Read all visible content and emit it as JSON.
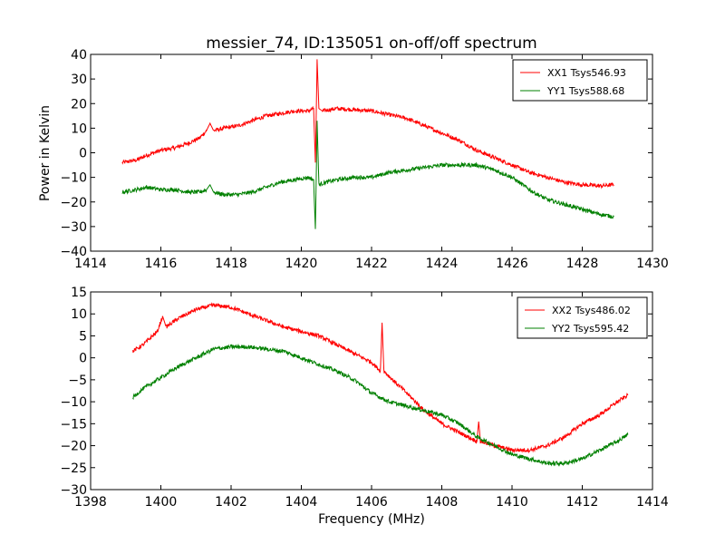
{
  "chart_data": [
    {
      "type": "line",
      "title": "messier_74, ID:135051 on-off/off spectrum",
      "xlabel": "",
      "ylabel": "Power in Kelvin",
      "xlim": [
        1414,
        1430
      ],
      "ylim": [
        -40,
        40
      ],
      "xticks": [
        "1414",
        "1416",
        "1418",
        "1420",
        "1422",
        "1424",
        "1426",
        "1428",
        "1430"
      ],
      "yticks": [
        "40",
        "30",
        "20",
        "10",
        "0",
        "−10",
        "−20",
        "−30",
        "−40"
      ],
      "legend_placement": "top-right",
      "grid": false,
      "series": [
        {
          "name": "XX1 Tsys546.93",
          "color": "#ff0000",
          "points": [
            [
              1414.9,
              -4
            ],
            [
              1415.3,
              -3
            ],
            [
              1415.6,
              -1
            ],
            [
              1416,
              1
            ],
            [
              1416.4,
              2
            ],
            [
              1416.8,
              4
            ],
            [
              1417.1,
              6
            ],
            [
              1417.3,
              9
            ],
            [
              1417.4,
              12
            ],
            [
              1417.5,
              9
            ],
            [
              1417.8,
              10
            ],
            [
              1418.2,
              11
            ],
            [
              1418.6,
              13
            ],
            [
              1419,
              15
            ],
            [
              1419.4,
              16
            ],
            [
              1419.8,
              17
            ],
            [
              1420.2,
              17
            ],
            [
              1420.35,
              18
            ],
            [
              1420.4,
              -4
            ],
            [
              1420.45,
              38
            ],
            [
              1420.5,
              18
            ],
            [
              1420.6,
              17
            ],
            [
              1421,
              18
            ],
            [
              1421.5,
              17.5
            ],
            [
              1422,
              17
            ],
            [
              1422.5,
              15.5
            ],
            [
              1423,
              14
            ],
            [
              1423.5,
              11
            ],
            [
              1424,
              8
            ],
            [
              1424.5,
              5
            ],
            [
              1425,
              1
            ],
            [
              1425.5,
              -2
            ],
            [
              1426,
              -5
            ],
            [
              1426.5,
              -8
            ],
            [
              1427,
              -10
            ],
            [
              1427.5,
              -12
            ],
            [
              1428,
              -13
            ],
            [
              1428.5,
              -13.5
            ],
            [
              1428.9,
              -13
            ]
          ]
        },
        {
          "name": "YY1 Tsys588.68",
          "color": "#008000",
          "points": [
            [
              1414.9,
              -16
            ],
            [
              1415.3,
              -15
            ],
            [
              1415.6,
              -14
            ],
            [
              1416,
              -15
            ],
            [
              1416.4,
              -15
            ],
            [
              1416.8,
              -16
            ],
            [
              1417.1,
              -16
            ],
            [
              1417.3,
              -15
            ],
            [
              1417.4,
              -13
            ],
            [
              1417.5,
              -16
            ],
            [
              1417.8,
              -17
            ],
            [
              1418.2,
              -17
            ],
            [
              1418.6,
              -16
            ],
            [
              1419,
              -14
            ],
            [
              1419.4,
              -12
            ],
            [
              1419.8,
              -11
            ],
            [
              1420.2,
              -10
            ],
            [
              1420.35,
              -11
            ],
            [
              1420.4,
              -31
            ],
            [
              1420.45,
              13
            ],
            [
              1420.5,
              -13
            ],
            [
              1420.7,
              -12
            ],
            [
              1421,
              -11
            ],
            [
              1421.5,
              -10
            ],
            [
              1422,
              -10
            ],
            [
              1422.5,
              -8
            ],
            [
              1423,
              -7
            ],
            [
              1423.5,
              -6
            ],
            [
              1424,
              -5
            ],
            [
              1424.5,
              -5
            ],
            [
              1425,
              -5
            ],
            [
              1425.5,
              -7
            ],
            [
              1426,
              -10
            ],
            [
              1426.3,
              -13
            ],
            [
              1426.6,
              -16
            ],
            [
              1427,
              -19
            ],
            [
              1427.5,
              -21
            ],
            [
              1428,
              -23
            ],
            [
              1428.5,
              -25
            ],
            [
              1428.9,
              -26
            ]
          ]
        }
      ]
    },
    {
      "type": "line",
      "title": "",
      "xlabel": "Frequency (MHz)",
      "ylabel": "",
      "xlim": [
        1398,
        1414
      ],
      "ylim": [
        -30,
        15
      ],
      "xticks": [
        "1398",
        "1400",
        "1402",
        "1404",
        "1406",
        "1408",
        "1410",
        "1412",
        "1414"
      ],
      "yticks": [
        "15",
        "10",
        "5",
        "0",
        "−5",
        "−10",
        "−15",
        "−20",
        "−25",
        "−30"
      ],
      "legend_placement": "top-right",
      "grid": false,
      "series": [
        {
          "name": "XX2 Tsys486.02",
          "color": "#ff0000",
          "points": [
            [
              1399.2,
              1.5
            ],
            [
              1399.5,
              3
            ],
            [
              1399.9,
              6
            ],
            [
              1400.05,
              9.5
            ],
            [
              1400.15,
              7
            ],
            [
              1400.5,
              9
            ],
            [
              1401,
              11
            ],
            [
              1401.5,
              12
            ],
            [
              1402,
              11.5
            ],
            [
              1402.5,
              10
            ],
            [
              1403,
              8.5
            ],
            [
              1403.5,
              7
            ],
            [
              1404,
              6
            ],
            [
              1404.5,
              5
            ],
            [
              1405,
              3
            ],
            [
              1405.5,
              1
            ],
            [
              1406,
              -1
            ],
            [
              1406.25,
              -3
            ],
            [
              1406.3,
              8
            ],
            [
              1406.35,
              -3
            ],
            [
              1406.6,
              -5
            ],
            [
              1407,
              -8
            ],
            [
              1407.5,
              -12
            ],
            [
              1408,
              -15
            ],
            [
              1408.5,
              -17
            ],
            [
              1409,
              -19
            ],
            [
              1409.05,
              -14.5
            ],
            [
              1409.1,
              -19
            ],
            [
              1409.5,
              -20
            ],
            [
              1410,
              -21
            ],
            [
              1410.5,
              -21
            ],
            [
              1411,
              -20
            ],
            [
              1411.5,
              -18
            ],
            [
              1412,
              -15
            ],
            [
              1412.5,
              -13
            ],
            [
              1413,
              -10
            ],
            [
              1413.3,
              -8.5
            ]
          ]
        },
        {
          "name": "YY2 Tsys595.42",
          "color": "#008000",
          "points": [
            [
              1399.2,
              -9
            ],
            [
              1399.5,
              -7
            ],
            [
              1399.9,
              -5
            ],
            [
              1400.5,
              -2
            ],
            [
              1401,
              0
            ],
            [
              1401.5,
              2
            ],
            [
              1402,
              2.5
            ],
            [
              1402.5,
              2.5
            ],
            [
              1403,
              2
            ],
            [
              1403.5,
              1.5
            ],
            [
              1404,
              0
            ],
            [
              1404.5,
              -1.5
            ],
            [
              1405,
              -3
            ],
            [
              1405.5,
              -5
            ],
            [
              1406,
              -8
            ],
            [
              1406.5,
              -10
            ],
            [
              1407,
              -11
            ],
            [
              1407.5,
              -12
            ],
            [
              1408,
              -13
            ],
            [
              1408.5,
              -15
            ],
            [
              1409,
              -18
            ],
            [
              1409.5,
              -20
            ],
            [
              1410,
              -22
            ],
            [
              1410.5,
              -23
            ],
            [
              1411,
              -24
            ],
            [
              1411.5,
              -24
            ],
            [
              1412,
              -23
            ],
            [
              1412.5,
              -21
            ],
            [
              1413,
              -19
            ],
            [
              1413.3,
              -17.5
            ]
          ]
        }
      ]
    }
  ]
}
